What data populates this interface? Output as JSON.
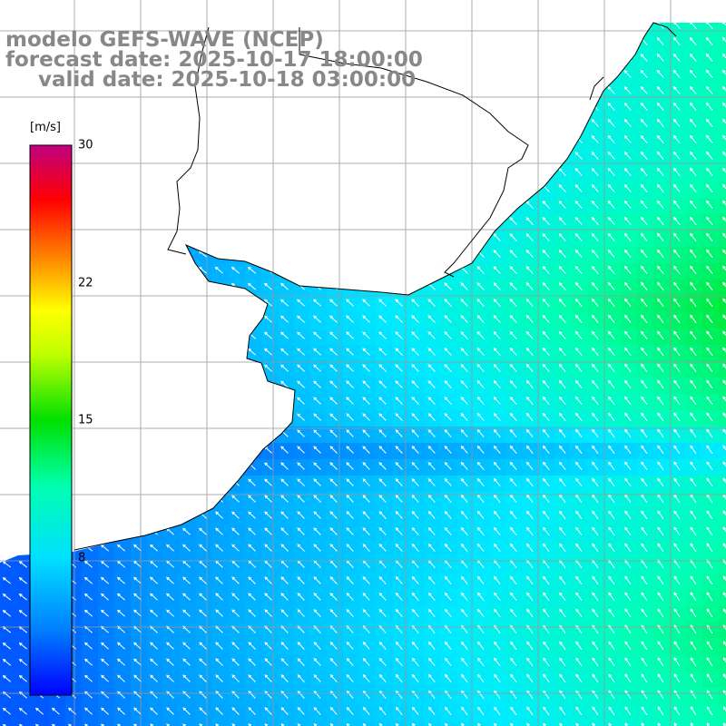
{
  "title": {
    "line1": "modelo GEFS-WAVE (NCEP)",
    "line2": "forecast date: 2025-10-17 18:00:00",
    "line3": "valid date: 2025-10-18 03:00:00"
  },
  "colorbar": {
    "unit": "[m/s]",
    "min": 0,
    "max": 30,
    "ticks": [
      "30",
      "22",
      "15",
      "8"
    ],
    "tick_values": [
      30,
      22,
      15,
      8
    ],
    "colors": [
      "#0000ff",
      "#00a0ff",
      "#00ffff",
      "#00ff60",
      "#00d000",
      "#ffff00",
      "#ff8000",
      "#ff0000",
      "#c00080"
    ]
  },
  "map": {
    "grid_lines": "on",
    "land_color": "#ffffff",
    "coastline_color": "#000000",
    "field": "wind speed with direction arrows",
    "dominant_flow": "from south-east"
  }
}
